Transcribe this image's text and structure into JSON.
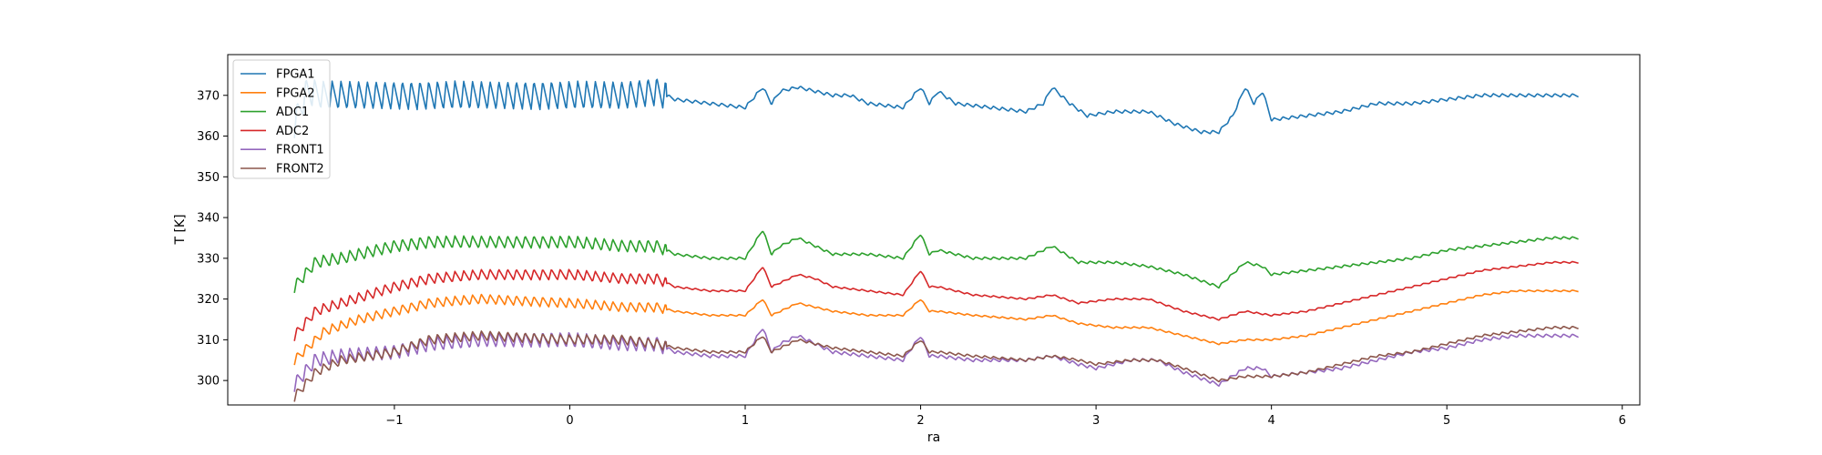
{
  "chart_data": {
    "type": "line",
    "title": "",
    "xlabel": "ra",
    "ylabel": "T [K]",
    "xlim": [
      -1.95,
      6.1
    ],
    "ylim": [
      294,
      380
    ],
    "x_ticks": [
      -1,
      0,
      1,
      2,
      3,
      4,
      5,
      6
    ],
    "x_tick_labels": [
      "−1",
      "0",
      "1",
      "2",
      "3",
      "4",
      "5",
      "6"
    ],
    "y_ticks": [
      300,
      310,
      320,
      330,
      340,
      350,
      360,
      370
    ],
    "y_tick_labels": [
      "300",
      "310",
      "320",
      "330",
      "340",
      "350",
      "360",
      "370"
    ],
    "grid": false,
    "legend_position": "top-left",
    "series": [
      {
        "name": "FPGA1",
        "color": "#1f77b4",
        "points": [
          [
            -1.57,
            363
          ],
          [
            -1.5,
            371
          ],
          [
            -1.4,
            370
          ],
          [
            -1.3,
            370
          ],
          [
            -1.0,
            370
          ],
          [
            -0.5,
            370
          ],
          [
            0.0,
            370
          ],
          [
            0.3,
            370
          ],
          [
            0.5,
            371
          ],
          [
            0.6,
            369
          ],
          [
            0.8,
            368
          ],
          [
            1.0,
            367
          ],
          [
            1.1,
            372
          ],
          [
            1.15,
            368
          ],
          [
            1.2,
            371
          ],
          [
            1.3,
            372
          ],
          [
            1.4,
            371
          ],
          [
            1.5,
            370
          ],
          [
            1.6,
            370
          ],
          [
            1.7,
            368
          ],
          [
            1.9,
            367
          ],
          [
            2.0,
            372
          ],
          [
            2.05,
            368
          ],
          [
            2.1,
            371
          ],
          [
            2.2,
            368
          ],
          [
            2.4,
            367
          ],
          [
            2.6,
            366
          ],
          [
            2.7,
            368
          ],
          [
            2.75,
            372
          ],
          [
            2.85,
            368
          ],
          [
            2.95,
            365
          ],
          [
            3.1,
            366
          ],
          [
            3.3,
            366
          ],
          [
            3.45,
            363
          ],
          [
            3.6,
            361
          ],
          [
            3.7,
            361
          ],
          [
            3.78,
            365
          ],
          [
            3.85,
            372
          ],
          [
            3.9,
            368
          ],
          [
            3.95,
            371
          ],
          [
            4.0,
            364
          ],
          [
            4.2,
            365
          ],
          [
            4.4,
            366
          ],
          [
            4.6,
            368
          ],
          [
            4.8,
            368
          ],
          [
            5.0,
            369
          ],
          [
            5.2,
            370
          ],
          [
            5.4,
            370
          ],
          [
            5.6,
            370
          ],
          [
            5.75,
            370
          ]
        ],
        "osc": [
          {
            "x0": -1.57,
            "x1": 0.55,
            "p": 0.05,
            "a": 3.5
          },
          {
            "x0": 0.55,
            "x1": 5.75,
            "p": 0.05,
            "a": 0.4
          }
        ]
      },
      {
        "name": "FPGA2",
        "color": "#ff7f0e",
        "points": [
          [
            -1.57,
            305
          ],
          [
            -1.4,
            312
          ],
          [
            -1.2,
            315
          ],
          [
            -1.0,
            317
          ],
          [
            -0.8,
            319
          ],
          [
            -0.5,
            320
          ],
          [
            0.0,
            319
          ],
          [
            0.3,
            318
          ],
          [
            0.5,
            318
          ],
          [
            0.6,
            317
          ],
          [
            0.8,
            316
          ],
          [
            1.0,
            316
          ],
          [
            1.1,
            320
          ],
          [
            1.15,
            316
          ],
          [
            1.2,
            317
          ],
          [
            1.3,
            319
          ],
          [
            1.4,
            318
          ],
          [
            1.5,
            317
          ],
          [
            1.7,
            316
          ],
          [
            1.9,
            316
          ],
          [
            2.0,
            320
          ],
          [
            2.05,
            317
          ],
          [
            2.1,
            317
          ],
          [
            2.3,
            316
          ],
          [
            2.6,
            315
          ],
          [
            2.75,
            316
          ],
          [
            2.9,
            314
          ],
          [
            3.1,
            313
          ],
          [
            3.3,
            313
          ],
          [
            3.5,
            311
          ],
          [
            3.7,
            309
          ],
          [
            3.85,
            310
          ],
          [
            4.0,
            310
          ],
          [
            4.2,
            311
          ],
          [
            4.4,
            313
          ],
          [
            4.6,
            315
          ],
          [
            4.8,
            317
          ],
          [
            5.0,
            319
          ],
          [
            5.2,
            321
          ],
          [
            5.4,
            322
          ],
          [
            5.6,
            322
          ],
          [
            5.75,
            322
          ]
        ],
        "osc": [
          {
            "x0": -1.57,
            "x1": 0.55,
            "p": 0.05,
            "a": 1.2
          },
          {
            "x0": 0.55,
            "x1": 5.75,
            "p": 0.05,
            "a": 0.2
          }
        ]
      },
      {
        "name": "ADC1",
        "color": "#2ca02c",
        "points": [
          [
            -1.57,
            323
          ],
          [
            -1.45,
            329
          ],
          [
            -1.3,
            330
          ],
          [
            -1.0,
            333
          ],
          [
            -0.8,
            334
          ],
          [
            -0.5,
            334
          ],
          [
            0.0,
            334
          ],
          [
            0.3,
            333
          ],
          [
            0.5,
            333
          ],
          [
            0.6,
            331
          ],
          [
            0.8,
            330
          ],
          [
            1.0,
            330
          ],
          [
            1.1,
            337
          ],
          [
            1.15,
            331
          ],
          [
            1.2,
            333
          ],
          [
            1.3,
            335
          ],
          [
            1.4,
            333
          ],
          [
            1.5,
            331
          ],
          [
            1.7,
            331
          ],
          [
            1.9,
            330
          ],
          [
            2.0,
            336
          ],
          [
            2.05,
            331
          ],
          [
            2.1,
            332
          ],
          [
            2.3,
            330
          ],
          [
            2.6,
            330
          ],
          [
            2.75,
            333
          ],
          [
            2.9,
            329
          ],
          [
            3.1,
            329
          ],
          [
            3.3,
            328
          ],
          [
            3.5,
            326
          ],
          [
            3.7,
            323
          ],
          [
            3.85,
            329
          ],
          [
            3.95,
            328
          ],
          [
            4.0,
            326
          ],
          [
            4.2,
            327
          ],
          [
            4.4,
            328
          ],
          [
            4.6,
            329
          ],
          [
            4.8,
            330
          ],
          [
            5.0,
            332
          ],
          [
            5.2,
            333
          ],
          [
            5.4,
            334
          ],
          [
            5.6,
            335
          ],
          [
            5.75,
            335
          ]
        ],
        "osc": [
          {
            "x0": -1.57,
            "x1": 0.55,
            "p": 0.05,
            "a": 1.5
          },
          {
            "x0": 0.55,
            "x1": 5.75,
            "p": 0.05,
            "a": 0.3
          }
        ]
      },
      {
        "name": "ADC2",
        "color": "#d62728",
        "points": [
          [
            -1.57,
            311
          ],
          [
            -1.45,
            317
          ],
          [
            -1.3,
            319
          ],
          [
            -1.0,
            323
          ],
          [
            -0.8,
            325
          ],
          [
            -0.5,
            326
          ],
          [
            0.0,
            326
          ],
          [
            0.3,
            325
          ],
          [
            0.5,
            325
          ],
          [
            0.6,
            323
          ],
          [
            0.8,
            322
          ],
          [
            1.0,
            322
          ],
          [
            1.1,
            328
          ],
          [
            1.15,
            323
          ],
          [
            1.2,
            324
          ],
          [
            1.3,
            326
          ],
          [
            1.4,
            325
          ],
          [
            1.5,
            323
          ],
          [
            1.7,
            322
          ],
          [
            1.9,
            321
          ],
          [
            2.0,
            327
          ],
          [
            2.05,
            323
          ],
          [
            2.1,
            323
          ],
          [
            2.3,
            321
          ],
          [
            2.6,
            320
          ],
          [
            2.75,
            321
          ],
          [
            2.9,
            319
          ],
          [
            3.1,
            320
          ],
          [
            3.3,
            320
          ],
          [
            3.5,
            317
          ],
          [
            3.7,
            315
          ],
          [
            3.85,
            317
          ],
          [
            4.0,
            316
          ],
          [
            4.2,
            317
          ],
          [
            4.4,
            319
          ],
          [
            4.6,
            321
          ],
          [
            4.8,
            323
          ],
          [
            5.0,
            325
          ],
          [
            5.2,
            327
          ],
          [
            5.4,
            328
          ],
          [
            5.6,
            329
          ],
          [
            5.75,
            329
          ]
        ],
        "osc": [
          {
            "x0": -1.57,
            "x1": 0.55,
            "p": 0.05,
            "a": 1.3
          },
          {
            "x0": 0.55,
            "x1": 5.75,
            "p": 0.05,
            "a": 0.2
          }
        ]
      },
      {
        "name": "FRONT1",
        "color": "#9467bd",
        "points": [
          [
            -1.57,
            299
          ],
          [
            -1.45,
            305
          ],
          [
            -1.3,
            306
          ],
          [
            -1.0,
            307
          ],
          [
            -0.8,
            309
          ],
          [
            -0.5,
            310
          ],
          [
            0.0,
            310
          ],
          [
            0.3,
            309
          ],
          [
            0.5,
            309
          ],
          [
            0.6,
            307
          ],
          [
            0.8,
            306
          ],
          [
            1.0,
            306
          ],
          [
            1.1,
            313
          ],
          [
            1.15,
            307
          ],
          [
            1.2,
            309
          ],
          [
            1.3,
            311
          ],
          [
            1.4,
            309
          ],
          [
            1.5,
            307
          ],
          [
            1.7,
            306
          ],
          [
            1.9,
            305
          ],
          [
            2.0,
            311
          ],
          [
            2.05,
            306
          ],
          [
            2.1,
            306
          ],
          [
            2.3,
            305
          ],
          [
            2.6,
            305
          ],
          [
            2.75,
            306
          ],
          [
            2.9,
            304
          ],
          [
            3.0,
            303
          ],
          [
            3.2,
            305
          ],
          [
            3.35,
            305
          ],
          [
            3.5,
            302
          ],
          [
            3.7,
            299
          ],
          [
            3.85,
            303
          ],
          [
            3.95,
            303
          ],
          [
            4.0,
            301
          ],
          [
            4.2,
            302
          ],
          [
            4.4,
            303
          ],
          [
            4.6,
            305
          ],
          [
            4.8,
            307
          ],
          [
            5.0,
            308
          ],
          [
            5.2,
            310
          ],
          [
            5.4,
            311
          ],
          [
            5.6,
            311
          ],
          [
            5.75,
            311
          ]
        ],
        "osc": [
          {
            "x0": -1.57,
            "x1": 0.55,
            "p": 0.05,
            "a": 1.8
          },
          {
            "x0": 0.55,
            "x1": 5.75,
            "p": 0.05,
            "a": 0.4
          }
        ]
      },
      {
        "name": "FRONT2",
        "color": "#8c564b",
        "points": [
          [
            -1.57,
            296
          ],
          [
            -1.45,
            302
          ],
          [
            -1.3,
            305
          ],
          [
            -1.0,
            307
          ],
          [
            -0.8,
            310
          ],
          [
            -0.5,
            311
          ],
          [
            0.0,
            310
          ],
          [
            0.3,
            310
          ],
          [
            0.5,
            309
          ],
          [
            0.6,
            308
          ],
          [
            0.8,
            307
          ],
          [
            1.0,
            307
          ],
          [
            1.1,
            311
          ],
          [
            1.15,
            307
          ],
          [
            1.2,
            308
          ],
          [
            1.3,
            310
          ],
          [
            1.4,
            309
          ],
          [
            1.5,
            308
          ],
          [
            1.7,
            307
          ],
          [
            1.9,
            306
          ],
          [
            2.0,
            310
          ],
          [
            2.05,
            307
          ],
          [
            2.1,
            307
          ],
          [
            2.3,
            306
          ],
          [
            2.6,
            305
          ],
          [
            2.75,
            306
          ],
          [
            2.9,
            305
          ],
          [
            3.0,
            304
          ],
          [
            3.2,
            305
          ],
          [
            3.35,
            305
          ],
          [
            3.5,
            303
          ],
          [
            3.7,
            300
          ],
          [
            3.85,
            301
          ],
          [
            4.0,
            301
          ],
          [
            4.2,
            302
          ],
          [
            4.4,
            304
          ],
          [
            4.6,
            306
          ],
          [
            4.8,
            307
          ],
          [
            5.0,
            309
          ],
          [
            5.2,
            311
          ],
          [
            5.4,
            312
          ],
          [
            5.6,
            313
          ],
          [
            5.75,
            313
          ]
        ],
        "osc": [
          {
            "x0": -1.57,
            "x1": 0.55,
            "p": 0.05,
            "a": 1.2
          },
          {
            "x0": 0.55,
            "x1": 5.75,
            "p": 0.05,
            "a": 0.3
          }
        ]
      }
    ]
  }
}
